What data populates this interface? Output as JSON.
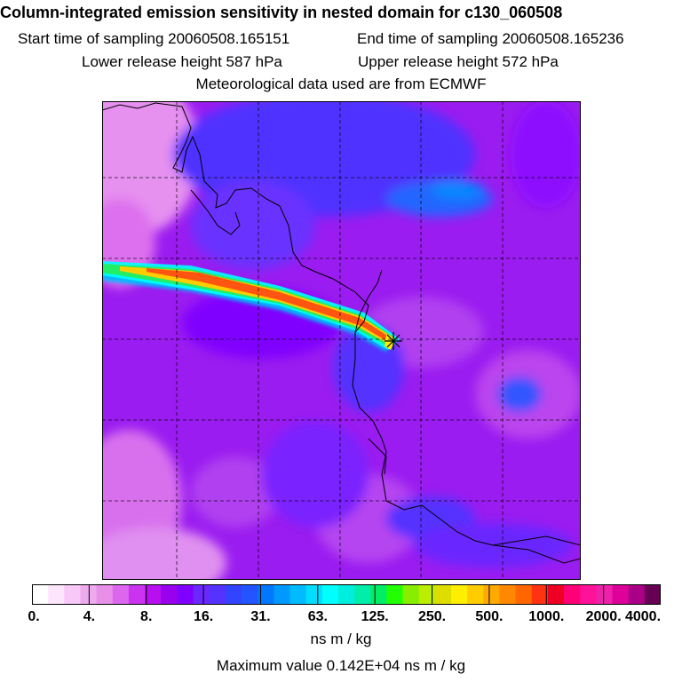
{
  "title": "Column-integrated emission sensitivity in nested domain for c130_060508",
  "sampling": {
    "start": "Start time of sampling 20060508.165151",
    "end": "End time of sampling 20060508.165236"
  },
  "release": {
    "lower": "Lower release height  587 hPa",
    "upper": "Upper release height  572 hPa"
  },
  "meteo": "Meteorological data used are from ECMWF",
  "colorbar": {
    "ticks": [
      "0.",
      "4.",
      "8.",
      "16.",
      "31.",
      "63.",
      "125.",
      "250.",
      "500.",
      "1000.",
      "2000.",
      "4000."
    ],
    "colors": [
      "#ffffff",
      "#fde6fd",
      "#f8c8f8",
      "#eeaaee",
      "#e890e8",
      "#dd66ee",
      "#cc33f0",
      "#b70ff0",
      "#9900ee",
      "#8000ff",
      "#6a28ff",
      "#5533ff",
      "#3344ff",
      "#2255ff",
      "#0077ff",
      "#0099ff",
      "#00bbff",
      "#00ddff",
      "#00ffff",
      "#00eedd",
      "#00eeaa",
      "#00ee66",
      "#22ff00",
      "#88ee00",
      "#bbee00",
      "#dddd00",
      "#ffee00",
      "#ffcc00",
      "#ffaa00",
      "#ff8800",
      "#ff6600",
      "#ff3311",
      "#ee0022",
      "#ff0077",
      "#ff1199",
      "#ee22aa",
      "#dd0099",
      "#aa0088",
      "#660055"
    ],
    "units": "ns m / kg"
  },
  "max_value": "Maximum value  0.142E+04 ns m / kg",
  "receptor_marker": "asterisk"
}
